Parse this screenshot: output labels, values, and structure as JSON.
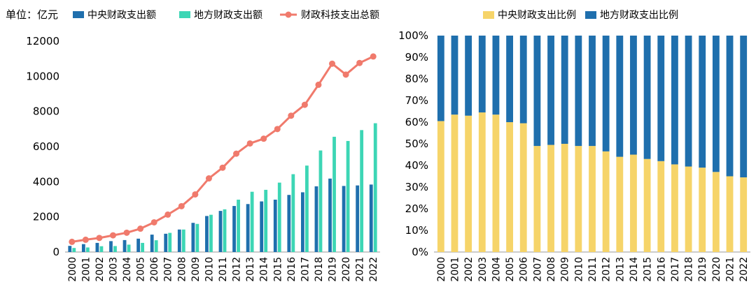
{
  "chart_data": [
    {
      "type": "bar",
      "unit_label": "单位：亿元",
      "categories": [
        "2000",
        "2001",
        "2002",
        "2003",
        "2004",
        "2005",
        "2006",
        "2007",
        "2008",
        "2009",
        "2010",
        "2011",
        "2012",
        "2013",
        "2014",
        "2015",
        "2016",
        "2017",
        "2018",
        "2019",
        "2020",
        "2021",
        "2022"
      ],
      "ylim": [
        0,
        12000
      ],
      "yticks": [
        "0",
        "2000",
        "4000",
        "6000",
        "8000",
        "10000",
        "12000"
      ],
      "legend_position": "top",
      "grid": false,
      "series": [
        {
          "name": "中央财政支出额",
          "kind": "bar",
          "color": "#1f6fad",
          "values": [
            350,
            450,
            520,
            620,
            680,
            760,
            990,
            1040,
            1280,
            1660,
            2050,
            2340,
            2620,
            2730,
            2880,
            2980,
            3250,
            3400,
            3740,
            4180,
            3760,
            3790,
            3840
          ]
        },
        {
          "name": "地方财政支出额",
          "kind": "bar",
          "color": "#3dd6b5",
          "values": [
            230,
            260,
            330,
            340,
            420,
            520,
            670,
            1090,
            1280,
            1600,
            2120,
            2430,
            2980,
            3430,
            3540,
            3950,
            4430,
            4920,
            5780,
            6560,
            6320,
            6940,
            7330
          ]
        },
        {
          "name": "财政科技支出总额",
          "kind": "line",
          "color": "#f07a6c",
          "values": [
            580,
            700,
            800,
            950,
            1100,
            1330,
            1690,
            2130,
            2610,
            3280,
            4190,
            4800,
            5600,
            6180,
            6450,
            7000,
            7760,
            8380,
            9520,
            10720,
            10100,
            10760,
            11130
          ]
        }
      ]
    },
    {
      "type": "bar",
      "stacked": true,
      "categories": [
        "2000",
        "2001",
        "2002",
        "2003",
        "2004",
        "2005",
        "2006",
        "2007",
        "2008",
        "2009",
        "2010",
        "2011",
        "2012",
        "2013",
        "2014",
        "2015",
        "2016",
        "2017",
        "2018",
        "2019",
        "2020",
        "2021",
        "2022"
      ],
      "ylim": [
        0,
        100
      ],
      "yticks": [
        "0%",
        "10%",
        "20%",
        "30%",
        "40%",
        "50%",
        "60%",
        "70%",
        "80%",
        "90%",
        "100%"
      ],
      "legend_position": "top",
      "grid": false,
      "series": [
        {
          "name": "中央财政支出比例",
          "color": "#f6d469",
          "values": [
            60.5,
            63.5,
            63,
            64.5,
            63.5,
            60,
            59.5,
            49,
            49.5,
            50,
            49,
            49,
            46.5,
            44,
            45,
            43,
            42,
            40.5,
            39.5,
            39,
            37,
            35,
            34.5
          ]
        },
        {
          "name": "地方财政支出比例",
          "color": "#1f6fad",
          "values": [
            39.5,
            36.5,
            37,
            35.5,
            36.5,
            40,
            40.5,
            51,
            50.5,
            50,
            51,
            51,
            53.5,
            56,
            55,
            57,
            58,
            59.5,
            60.5,
            61,
            63,
            65,
            65.5
          ]
        }
      ]
    }
  ]
}
